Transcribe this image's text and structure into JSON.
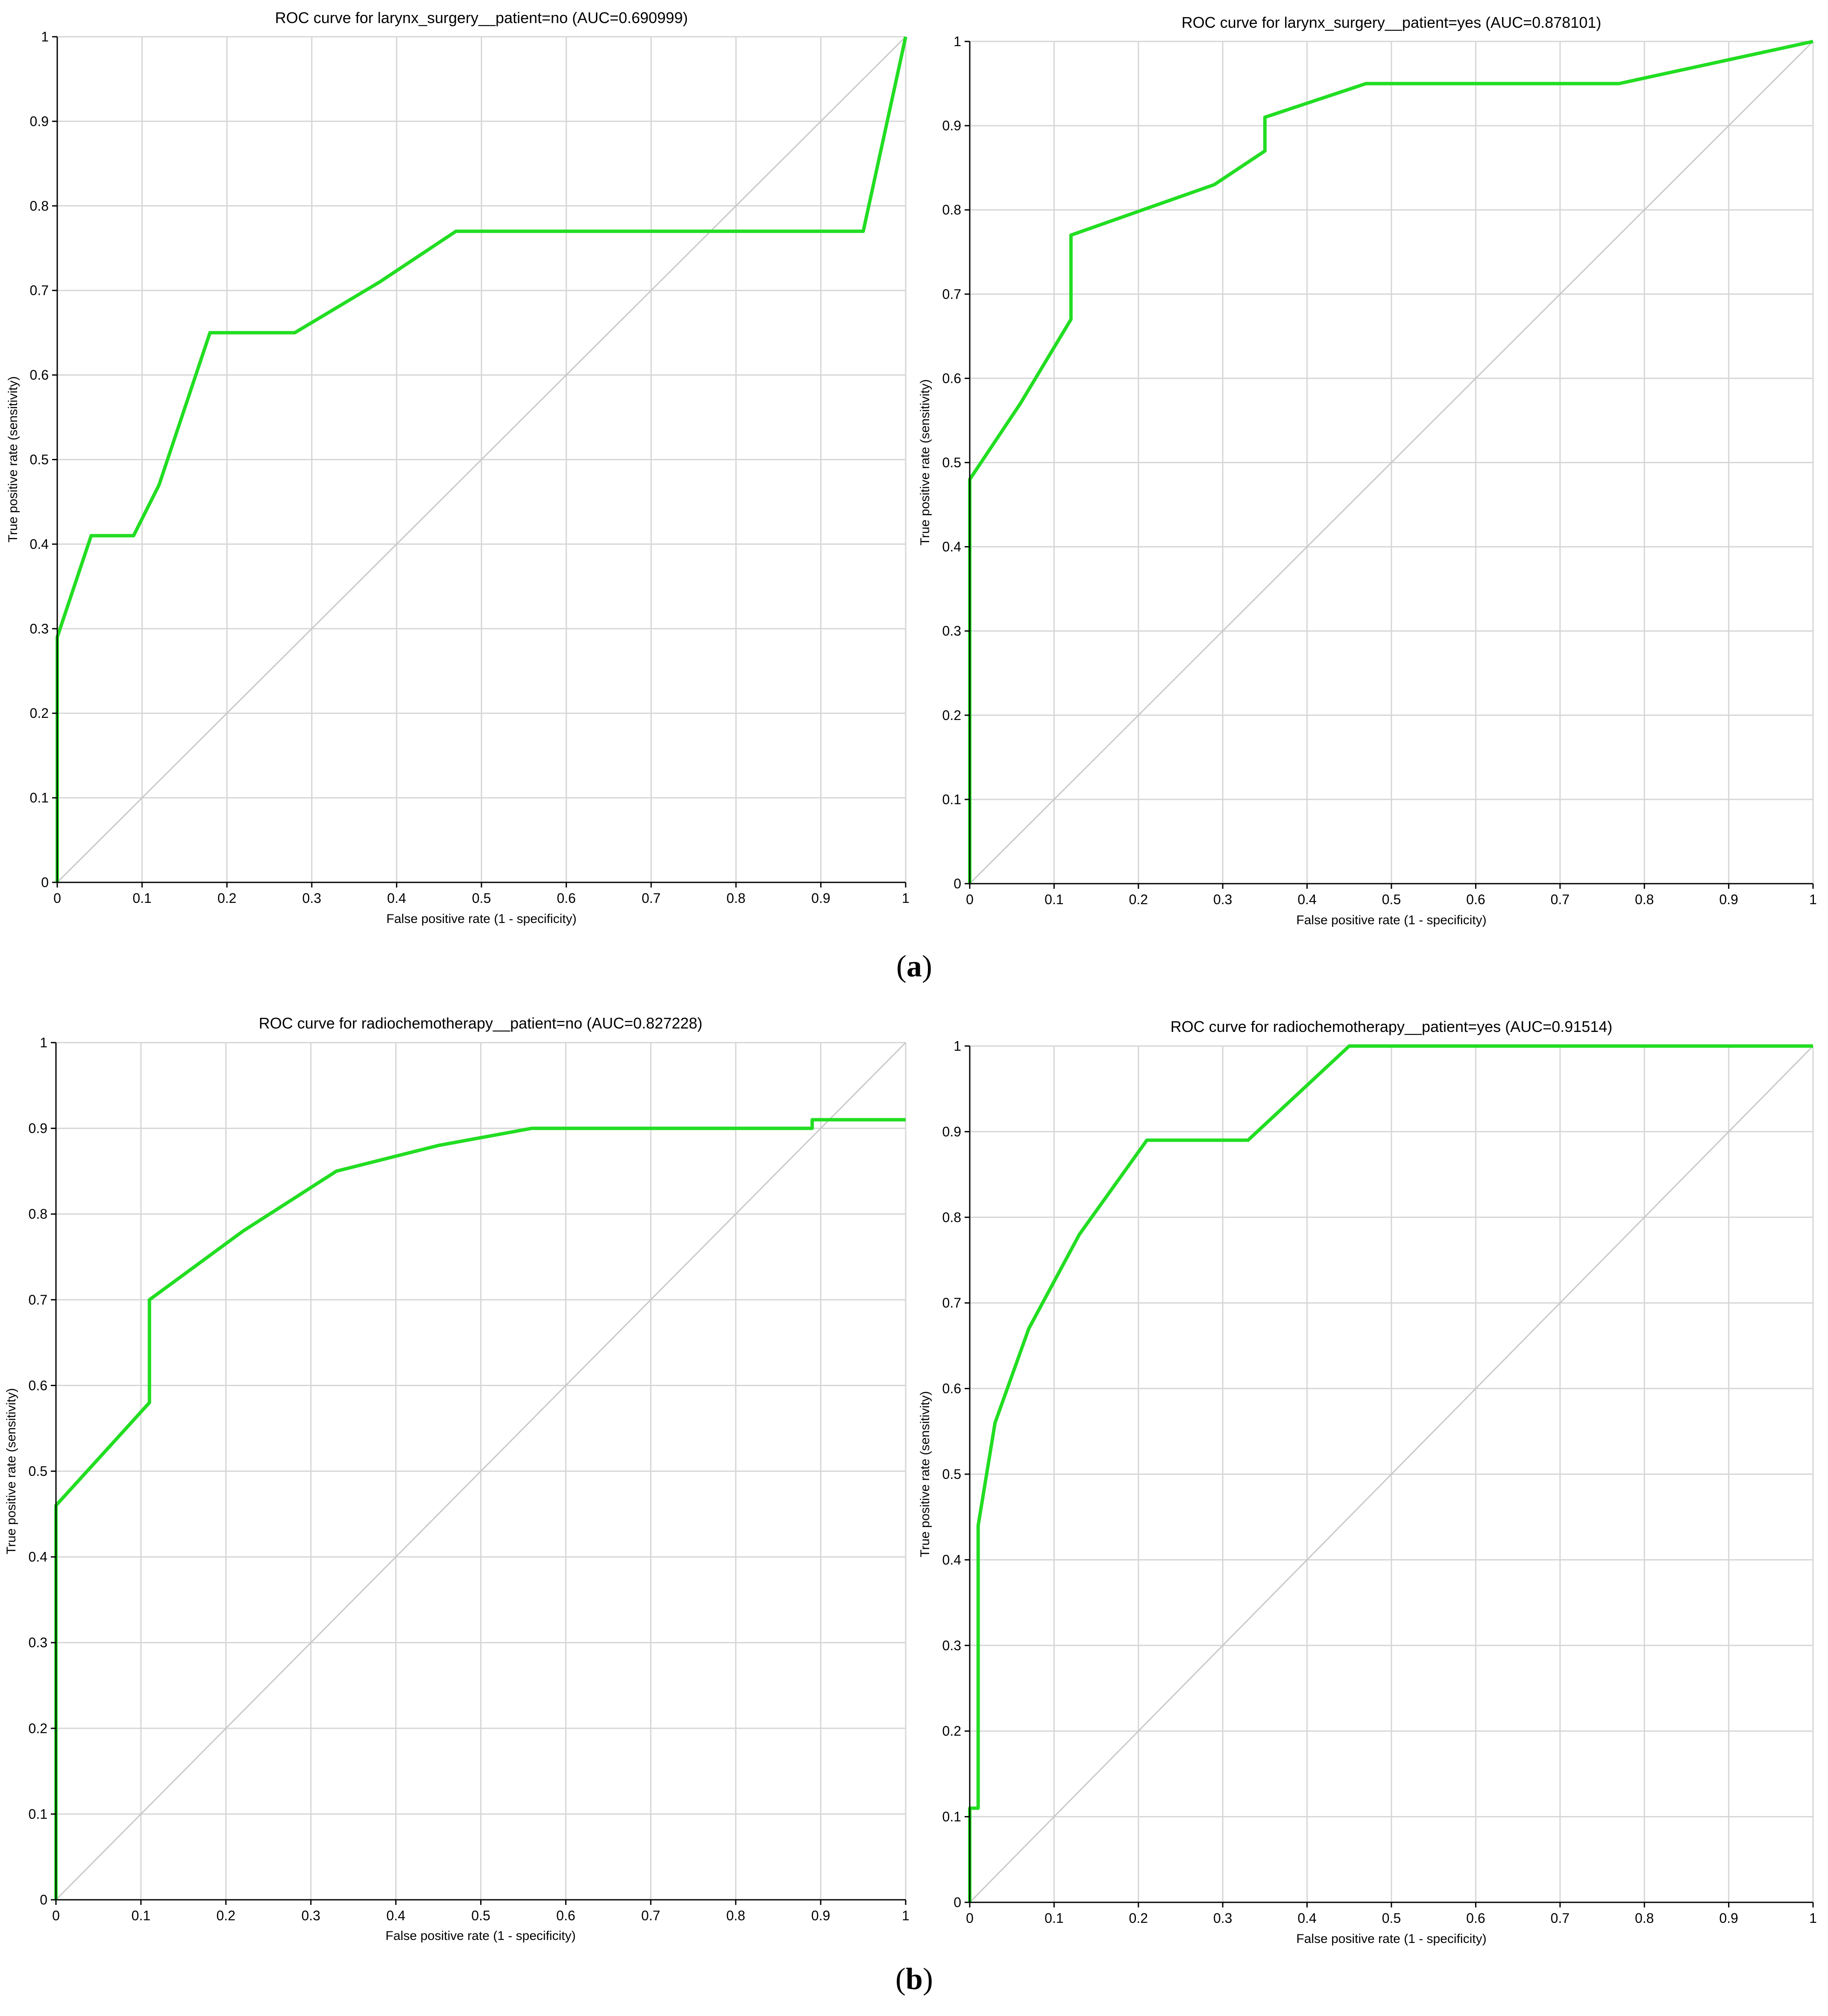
{
  "figure": {
    "panel_labels": [
      "a",
      "b"
    ]
  },
  "chart_data": [
    {
      "type": "line",
      "title": "ROC curve for larynx_surgery__patient=no (AUC=0.690999)",
      "xlabel": "False positive rate (1 - specificity)",
      "ylabel": "True positive rate (sensitivity)",
      "xlim": [
        0,
        1
      ],
      "ylim": [
        0,
        1
      ],
      "xticks": [
        "0",
        "0.1",
        "0.2",
        "0.3",
        "0.4",
        "0.5",
        "0.6",
        "0.7",
        "0.8",
        "0.9",
        "1"
      ],
      "yticks": [
        "0",
        "0.1",
        "0.2",
        "0.3",
        "0.4",
        "0.5",
        "0.6",
        "0.7",
        "0.8",
        "0.9",
        "1"
      ],
      "grid": true,
      "colors": {
        "curve": "#22dd22",
        "diagonal": "#c8c8c8",
        "grid": "#d6d6d6"
      },
      "series": [
        {
          "role": "roc",
          "x": [
            0,
            0,
            0.04,
            0.09,
            0.12,
            0.18,
            0.28,
            0.38,
            0.47,
            0.95,
            1
          ],
          "y": [
            0,
            0.29,
            0.41,
            0.41,
            0.47,
            0.65,
            0.65,
            0.71,
            0.77,
            0.77,
            1
          ]
        },
        {
          "role": "reference",
          "x": [
            0,
            1
          ],
          "y": [
            0,
            1
          ]
        }
      ]
    },
    {
      "type": "line",
      "title": "ROC curve for larynx_surgery__patient=yes (AUC=0.878101)",
      "xlabel": "False positive rate (1 - specificity)",
      "ylabel": "True positive rate (sensitivity)",
      "xlim": [
        0,
        1
      ],
      "ylim": [
        0,
        1
      ],
      "xticks": [
        "0",
        "0.1",
        "0.2",
        "0.3",
        "0.4",
        "0.5",
        "0.6",
        "0.7",
        "0.8",
        "0.9",
        "1"
      ],
      "yticks": [
        "0",
        "0.1",
        "0.2",
        "0.3",
        "0.4",
        "0.5",
        "0.6",
        "0.7",
        "0.8",
        "0.9",
        "1"
      ],
      "grid": true,
      "colors": {
        "curve": "#22dd22",
        "diagonal": "#c8c8c8",
        "grid": "#d6d6d6"
      },
      "series": [
        {
          "role": "roc",
          "x": [
            0,
            0,
            0.06,
            0.12,
            0.12,
            0.29,
            0.35,
            0.35,
            0.47,
            0.77,
            1
          ],
          "y": [
            0,
            0.48,
            0.57,
            0.67,
            0.77,
            0.83,
            0.87,
            0.91,
            0.95,
            0.95,
            1
          ]
        },
        {
          "role": "reference",
          "x": [
            0,
            1
          ],
          "y": [
            0,
            1
          ]
        }
      ]
    },
    {
      "type": "line",
      "title": "ROC curve for radiochemotherapy__patient=no (AUC=0.827228)",
      "xlabel": "False positive rate (1 - specificity)",
      "ylabel": "True positive rate (sensitivity)",
      "xlim": [
        0,
        1
      ],
      "ylim": [
        0,
        1
      ],
      "xticks": [
        "0",
        "0.1",
        "0.2",
        "0.3",
        "0.4",
        "0.5",
        "0.6",
        "0.7",
        "0.8",
        "0.9",
        "1"
      ],
      "yticks": [
        "0",
        "0.1",
        "0.2",
        "0.3",
        "0.4",
        "0.5",
        "0.6",
        "0.7",
        "0.8",
        "0.9",
        "1"
      ],
      "grid": true,
      "colors": {
        "curve": "#22dd22",
        "diagonal": "#c8c8c8",
        "grid": "#d6d6d6"
      },
      "series": [
        {
          "role": "roc",
          "x": [
            0,
            0,
            0.11,
            0.11,
            0.22,
            0.33,
            0.45,
            0.56,
            0.89,
            0.89,
            1
          ],
          "y": [
            0,
            0.46,
            0.58,
            0.7,
            0.78,
            0.85,
            0.88,
            0.9,
            0.9,
            0.91,
            0.91
          ]
        },
        {
          "role": "reference",
          "x": [
            0,
            1
          ],
          "y": [
            0,
            1
          ]
        }
      ]
    },
    {
      "type": "line",
      "title": "ROC curve for radiochemotherapy__patient=yes (AUC=0.91514)",
      "xlabel": "False positive rate (1 - specificity)",
      "ylabel": "True positive rate (sensitivity)",
      "xlim": [
        0,
        1
      ],
      "ylim": [
        0,
        1
      ],
      "xticks": [
        "0",
        "0.1",
        "0.2",
        "0.3",
        "0.4",
        "0.5",
        "0.6",
        "0.7",
        "0.8",
        "0.9",
        "1"
      ],
      "yticks": [
        "0",
        "0.1",
        "0.2",
        "0.3",
        "0.4",
        "0.5",
        "0.6",
        "0.7",
        "0.8",
        "0.9",
        "1"
      ],
      "grid": true,
      "colors": {
        "curve": "#22dd22",
        "diagonal": "#c8c8c8",
        "grid": "#d6d6d6"
      },
      "series": [
        {
          "role": "roc",
          "x": [
            0,
            0,
            0.01,
            0.01,
            0.03,
            0.07,
            0.13,
            0.21,
            0.33,
            0.45,
            1
          ],
          "y": [
            0,
            0.11,
            0.11,
            0.44,
            0.56,
            0.67,
            0.78,
            0.89,
            0.89,
            1,
            1
          ]
        },
        {
          "role": "reference",
          "x": [
            0,
            1
          ],
          "y": [
            0,
            1
          ]
        }
      ]
    }
  ]
}
